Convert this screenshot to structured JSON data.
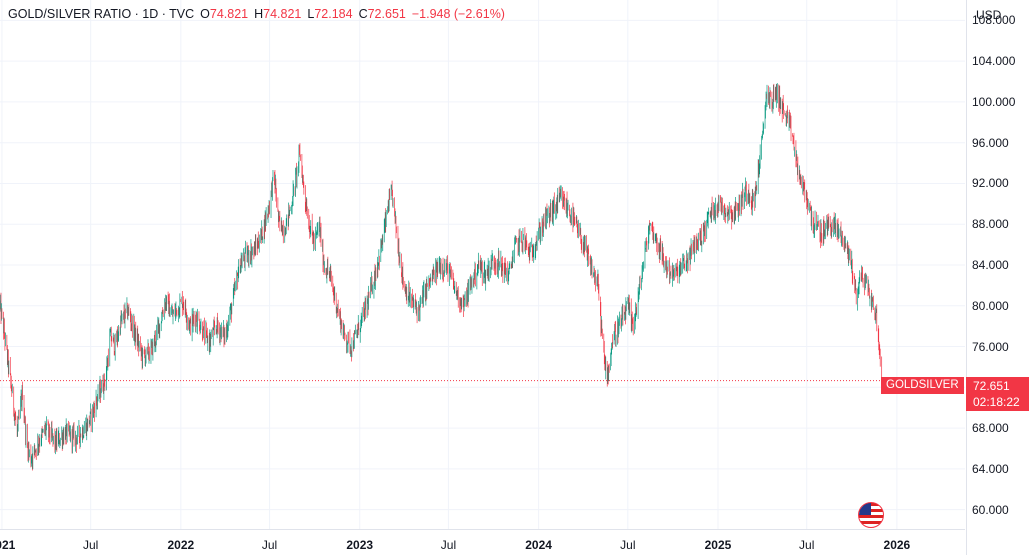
{
  "header": {
    "symbol": "GOLD/SILVER RATIO · 1D · TVC",
    "open_label": "O",
    "open": "74.821",
    "high_label": "H",
    "high": "74.821",
    "low_label": "L",
    "low": "72.184",
    "close_label": "C",
    "close": "72.651",
    "change": "−1.948 (−2.61%)"
  },
  "price_axis": {
    "currency": "USD",
    "last_symbol": "GOLDSILVER",
    "last_price": "72.651",
    "countdown": "02:18:22"
  },
  "colors": {
    "up": "#089981",
    "down": "#f23645",
    "grid": "#f0f3fa",
    "last_line": "#f23645"
  },
  "icons": {
    "flag": "us-flag-icon"
  },
  "chart_data": {
    "type": "candlestick",
    "title": "GOLD/SILVER RATIO",
    "interval": "1D",
    "exchange": "TVC",
    "currency": "USD",
    "ylim": [
      58.0,
      110.0
    ],
    "xlim": [
      "2020-12-28",
      "2026-05-20"
    ],
    "y_ticks": [
      "108.000",
      "104.000",
      "100.000",
      "96.000",
      "92.000",
      "88.000",
      "84.000",
      "80.000",
      "76.000",
      "72.000",
      "68.000",
      "64.000",
      "60.000"
    ],
    "x_ticks": [
      {
        "label": "2021",
        "date": "2021-01-01"
      },
      {
        "label": "Jul",
        "date": "2021-07-01"
      },
      {
        "label": "2022",
        "date": "2022-01-01"
      },
      {
        "label": "Jul",
        "date": "2022-07-01"
      },
      {
        "label": "2023",
        "date": "2023-01-01"
      },
      {
        "label": "Jul",
        "date": "2023-07-01"
      },
      {
        "label": "2024",
        "date": "2024-01-01"
      },
      {
        "label": "Jul",
        "date": "2024-07-01"
      },
      {
        "label": "2025",
        "date": "2025-01-01"
      },
      {
        "label": "Jul",
        "date": "2025-07-01"
      },
      {
        "label": "2026",
        "date": "2026-01-01"
      }
    ],
    "last_value": 72.651,
    "grid": true,
    "close_series": [
      [
        "2020-12-28",
        80.0
      ],
      [
        "2021-01-05",
        77.5
      ],
      [
        "2021-01-20",
        72.0
      ],
      [
        "2021-02-01",
        67.5
      ],
      [
        "2021-02-12",
        71.5
      ],
      [
        "2021-02-20",
        66.5
      ],
      [
        "2021-03-01",
        65.0
      ],
      [
        "2021-03-15",
        66.5
      ],
      [
        "2021-04-01",
        68.0
      ],
      [
        "2021-04-20",
        66.5
      ],
      [
        "2021-05-10",
        67.5
      ],
      [
        "2021-06-01",
        67.0
      ],
      [
        "2021-06-20",
        68.0
      ],
      [
        "2021-07-01",
        69.0
      ],
      [
        "2021-07-15",
        71.0
      ],
      [
        "2021-08-01",
        73.0
      ],
      [
        "2021-08-10",
        77.0
      ],
      [
        "2021-08-20",
        76.0
      ],
      [
        "2021-09-01",
        78.5
      ],
      [
        "2021-09-15",
        79.5
      ],
      [
        "2021-10-01",
        77.0
      ],
      [
        "2021-10-15",
        75.0
      ],
      [
        "2021-11-01",
        75.5
      ],
      [
        "2021-11-15",
        77.5
      ],
      [
        "2021-12-01",
        80.5
      ],
      [
        "2021-12-15",
        79.0
      ],
      [
        "2022-01-05",
        80.5
      ],
      [
        "2022-01-20",
        78.0
      ],
      [
        "2022-02-01",
        79.0
      ],
      [
        "2022-02-20",
        77.0
      ],
      [
        "2022-03-01",
        76.5
      ],
      [
        "2022-03-15",
        78.0
      ],
      [
        "2022-04-01",
        77.0
      ],
      [
        "2022-04-15",
        80.0
      ],
      [
        "2022-05-01",
        84.0
      ],
      [
        "2022-05-15",
        85.0
      ],
      [
        "2022-06-01",
        85.5
      ],
      [
        "2022-06-15",
        87.0
      ],
      [
        "2022-07-01",
        90.0
      ],
      [
        "2022-07-10",
        93.0
      ],
      [
        "2022-07-20",
        88.0
      ],
      [
        "2022-08-01",
        87.5
      ],
      [
        "2022-08-15",
        90.0
      ],
      [
        "2022-09-01",
        95.0
      ],
      [
        "2022-09-10",
        91.0
      ],
      [
        "2022-09-20",
        88.0
      ],
      [
        "2022-10-01",
        86.0
      ],
      [
        "2022-10-10",
        88.0
      ],
      [
        "2022-10-20",
        84.0
      ],
      [
        "2022-11-01",
        83.0
      ],
      [
        "2022-11-10",
        81.0
      ],
      [
        "2022-11-20",
        79.0
      ],
      [
        "2022-12-01",
        77.0
      ],
      [
        "2022-12-15",
        76.0
      ],
      [
        "2023-01-01",
        78.0
      ],
      [
        "2023-01-15",
        80.0
      ],
      [
        "2023-02-01",
        83.0
      ],
      [
        "2023-02-15",
        86.0
      ],
      [
        "2023-03-01",
        90.0
      ],
      [
        "2023-03-08",
        91.0
      ],
      [
        "2023-03-20",
        86.0
      ],
      [
        "2023-04-01",
        82.0
      ],
      [
        "2023-04-15",
        80.5
      ],
      [
        "2023-05-01",
        79.5
      ],
      [
        "2023-05-15",
        81.5
      ],
      [
        "2023-06-01",
        83.0
      ],
      [
        "2023-06-15",
        84.0
      ],
      [
        "2023-07-01",
        83.5
      ],
      [
        "2023-07-15",
        81.5
      ],
      [
        "2023-08-01",
        80.0
      ],
      [
        "2023-08-15",
        82.0
      ],
      [
        "2023-09-01",
        84.0
      ],
      [
        "2023-09-15",
        83.0
      ],
      [
        "2023-10-01",
        84.5
      ],
      [
        "2023-10-15",
        84.0
      ],
      [
        "2023-11-01",
        83.0
      ],
      [
        "2023-11-15",
        86.0
      ],
      [
        "2023-12-01",
        86.5
      ],
      [
        "2023-12-15",
        85.0
      ],
      [
        "2024-01-01",
        87.0
      ],
      [
        "2024-01-15",
        88.5
      ],
      [
        "2024-02-01",
        89.5
      ],
      [
        "2024-02-15",
        90.5
      ],
      [
        "2024-03-01",
        89.5
      ],
      [
        "2024-03-15",
        88.0
      ],
      [
        "2024-04-01",
        86.0
      ],
      [
        "2024-04-15",
        84.0
      ],
      [
        "2024-05-01",
        82.0
      ],
      [
        "2024-05-15",
        74.0
      ],
      [
        "2024-05-22",
        73.5
      ],
      [
        "2024-06-01",
        77.0
      ],
      [
        "2024-06-15",
        78.0
      ],
      [
        "2024-07-01",
        80.0
      ],
      [
        "2024-07-10",
        78.0
      ],
      [
        "2024-07-20",
        80.0
      ],
      [
        "2024-08-01",
        84.0
      ],
      [
        "2024-08-15",
        88.0
      ],
      [
        "2024-09-01",
        86.0
      ],
      [
        "2024-09-15",
        84.0
      ],
      [
        "2024-10-01",
        83.0
      ],
      [
        "2024-10-15",
        83.5
      ],
      [
        "2024-11-01",
        84.5
      ],
      [
        "2024-11-15",
        86.0
      ],
      [
        "2024-12-01",
        87.0
      ],
      [
        "2024-12-15",
        89.0
      ],
      [
        "2025-01-01",
        90.0
      ],
      [
        "2025-01-15",
        89.5
      ],
      [
        "2025-02-01",
        89.0
      ],
      [
        "2025-02-15",
        90.0
      ],
      [
        "2025-03-01",
        91.5
      ],
      [
        "2025-03-15",
        90.0
      ],
      [
        "2025-04-01",
        96.0
      ],
      [
        "2025-04-10",
        101.0
      ],
      [
        "2025-04-20",
        100.0
      ],
      [
        "2025-05-01",
        101.0
      ],
      [
        "2025-05-15",
        99.0
      ],
      [
        "2025-06-01",
        97.0
      ],
      [
        "2025-06-10",
        94.0
      ],
      [
        "2025-06-20",
        92.0
      ],
      [
        "2025-07-01",
        90.5
      ],
      [
        "2025-07-15",
        88.0
      ],
      [
        "2025-08-01",
        87.0
      ],
      [
        "2025-08-15",
        88.0
      ],
      [
        "2025-09-01",
        87.5
      ],
      [
        "2025-09-15",
        86.5
      ],
      [
        "2025-10-01",
        84.0
      ],
      [
        "2025-10-10",
        81.0
      ],
      [
        "2025-10-20",
        83.0
      ],
      [
        "2025-11-01",
        82.0
      ],
      [
        "2025-11-10",
        80.5
      ],
      [
        "2025-11-20",
        79.0
      ],
      [
        "2025-11-28",
        74.8
      ],
      [
        "2025-12-01",
        72.651
      ]
    ]
  }
}
